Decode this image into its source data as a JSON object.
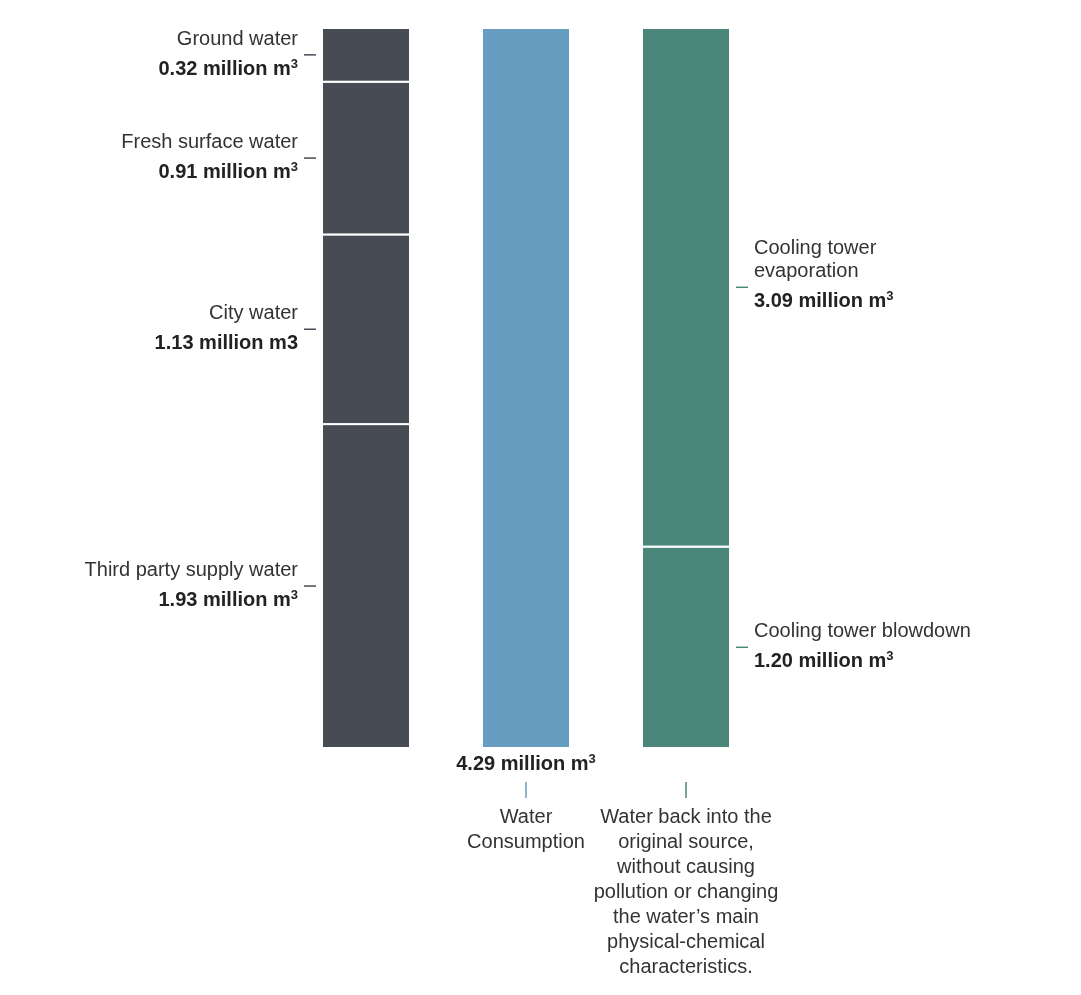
{
  "chart_data": {
    "type": "bar",
    "stacked": true,
    "legend": false,
    "categories": [
      null,
      "Water Consumption",
      "Water back into the original source, without causing pollution or changing the water’s main physical-chemical characteristics."
    ],
    "series": [
      {
        "name": "Third party supply water",
        "color": "#474b54",
        "values": [
          1930000,
          null,
          null
        ],
        "value_labels": [
          "1.93 million m$^{3}$",
          null,
          null
        ]
      },
      {
        "name": "City water",
        "color": "#474b54",
        "values": [
          1130000,
          null,
          null
        ],
        "value_labels": [
          "1.13 million m3",
          null,
          null
        ]
      },
      {
        "name": "Fresh surface water",
        "color": "#474b54",
        "values": [
          910000,
          null,
          null
        ],
        "value_labels": [
          "0.91 million m$^{3}$",
          null,
          null
        ]
      },
      {
        "name": "Ground water",
        "color": "#474b54",
        "values": [
          320000,
          null,
          null
        ],
        "value_labels": [
          "0.32 million m$^{3}$",
          null,
          null
        ]
      },
      {
        "color": "#669dc0",
        "values": [
          null,
          4290000,
          null
        ],
        "value_labels": [
          null,
          "4.29 million m$^{3}$",
          null
        ]
      },
      {
        "name": "Cooling tower blowdown",
        "color": "#4a877a",
        "values": [
          null,
          null,
          1200000
        ],
        "value_labels": [
          null,
          null,
          "1.20 million m$^{3}$"
        ]
      },
      {
        "name": "Cooling tower evaporation",
        "color": "#4a877a",
        "values": [
          null,
          null,
          3090000
        ],
        "value_labels": [
          null,
          null,
          "3.09 million m$^{3}$"
        ]
      }
    ]
  }
}
